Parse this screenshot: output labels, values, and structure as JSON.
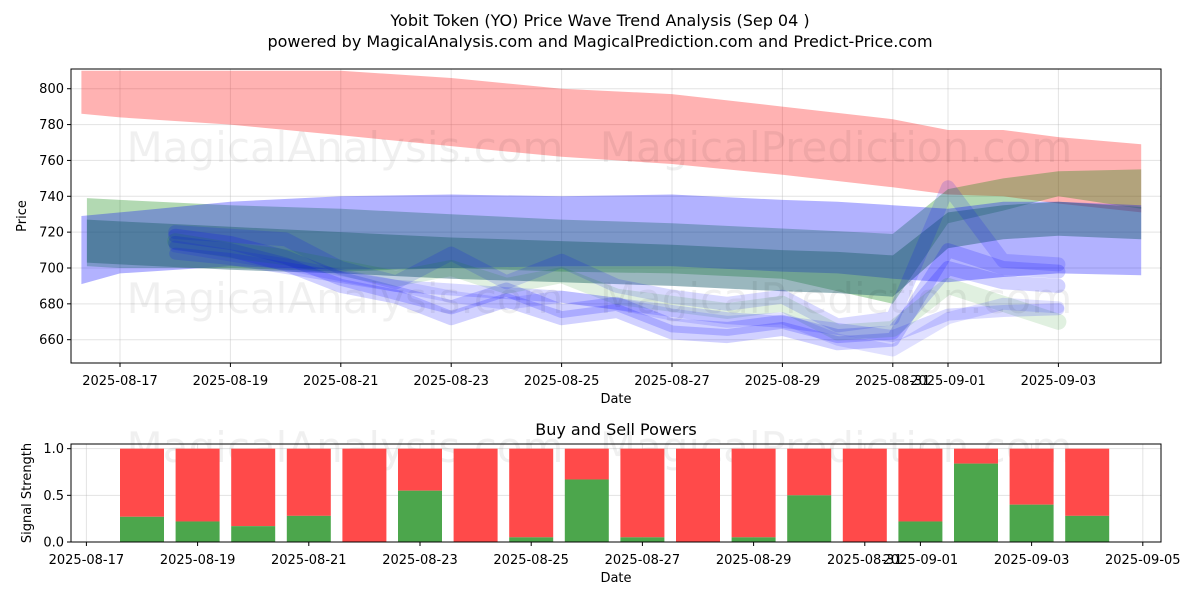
{
  "title": "Yobit Token (YO) Price Wave Trend Analysis (Sep 04 )",
  "subtitle": "powered by MagicalAnalysis.com and MagicalPrediction.com and Predict-Price.com",
  "watermarks": [
    "MagicalAnalysis.com",
    "MagicalPrediction.com"
  ],
  "chart_data": [
    {
      "type": "area",
      "xlabel": "Date",
      "ylabel": "Price",
      "ylim": [
        647,
        811
      ],
      "yticks": [
        660,
        680,
        700,
        720,
        740,
        760,
        780,
        800
      ],
      "xticks": [
        "2025-08-17",
        "2025-08-19",
        "2025-08-21",
        "2025-08-23",
        "2025-08-25",
        "2025-08-27",
        "2025-08-29",
        "2025-08-31",
        "2025-09-01",
        "2025-09-03"
      ],
      "xtick_day": [
        0,
        2,
        4,
        6,
        8,
        10,
        12,
        14,
        15,
        17
      ],
      "grid": true,
      "series": [
        {
          "name": "red band",
          "color": "#ff0000",
          "opacity": 0.3,
          "x": [
            -0.7,
            0,
            2,
            4,
            6,
            8,
            10,
            12,
            14,
            15,
            16,
            17,
            18.5
          ],
          "upper": [
            810,
            810,
            810,
            810,
            806,
            800,
            797,
            790,
            783,
            777,
            777,
            773,
            769
          ],
          "lower": [
            786,
            784,
            780,
            774,
            768,
            762,
            758,
            752,
            745,
            741,
            740,
            736,
            731
          ]
        },
        {
          "name": "green band",
          "color": "#008000",
          "opacity": 0.3,
          "x": [
            -0.6,
            0,
            2,
            4,
            6,
            8,
            10,
            12,
            14,
            15,
            16,
            17,
            18.5
          ],
          "upper": [
            739,
            738,
            735,
            733,
            730,
            727,
            725,
            722,
            719,
            744,
            750,
            754,
            755
          ],
          "lower": [
            701,
            700,
            700,
            698,
            700,
            698,
            697,
            694,
            680,
            725,
            732,
            740,
            733
          ]
        },
        {
          "name": "blue band",
          "color": "#0000ff",
          "opacity": 0.3,
          "x": [
            -0.7,
            0,
            2,
            4,
            6,
            8,
            10,
            12,
            13,
            14,
            15,
            16,
            17,
            18.5
          ],
          "upper": [
            729,
            731,
            737,
            740,
            741,
            740,
            741,
            738,
            737,
            735,
            733,
            737,
            737,
            735
          ],
          "lower": [
            691,
            697,
            701,
            699,
            700,
            701,
            701,
            698,
            697,
            694,
            692,
            695,
            697,
            696
          ]
        },
        {
          "name": "dark band",
          "color": "#1f5f6f",
          "opacity": 0.45,
          "x": [
            -0.6,
            0,
            2,
            4,
            6,
            8,
            10,
            12,
            13,
            14,
            15,
            16,
            17,
            18.5
          ],
          "upper": [
            727,
            726,
            723,
            720,
            717,
            715,
            713,
            710,
            709,
            707,
            731,
            735,
            737,
            734
          ],
          "lower": [
            703,
            702,
            699,
            697,
            694,
            692,
            690,
            687,
            686,
            684,
            711,
            716,
            718,
            716
          ]
        }
      ],
      "wave_lines": [
        {
          "color": "#0000ff",
          "opacity": 0.18,
          "width": 14,
          "y": [
            718,
            714,
            706,
            694,
            686,
            678,
            688,
            676,
            680,
            668,
            666,
            670,
            662,
            664,
            700,
            692,
            690
          ]
        },
        {
          "color": "#0000ff",
          "opacity": 0.18,
          "width": 14,
          "y": [
            714,
            710,
            702,
            690,
            684,
            672,
            682,
            672,
            676,
            664,
            662,
            666,
            658,
            660,
            710,
            700,
            698
          ]
        },
        {
          "color": "#0000ff",
          "opacity": 0.15,
          "width": 14,
          "y": [
            720,
            718,
            716,
            700,
            692,
            708,
            692,
            704,
            690,
            684,
            680,
            684,
            668,
            672,
            745,
            704,
            702
          ]
        },
        {
          "color": "#008000",
          "opacity": 0.12,
          "width": 16,
          "y": [
            715,
            710,
            706,
            700,
            694,
            700,
            690,
            696,
            684,
            680,
            676,
            680,
            664,
            666,
            690,
            680,
            670
          ]
        },
        {
          "color": "#0000ff",
          "opacity": 0.15,
          "width": 12,
          "y": [
            708,
            705,
            700,
            695,
            690,
            688,
            686,
            684,
            680,
            676,
            672,
            670,
            666,
            662,
            674,
            676,
            677
          ]
        },
        {
          "color": "#0000ff",
          "opacity": 0.12,
          "width": 12,
          "y": [
            712,
            707,
            702,
            696,
            690,
            684,
            680,
            684,
            680,
            674,
            670,
            672,
            660,
            654,
            672,
            680,
            678
          ]
        }
      ]
    },
    {
      "type": "bar",
      "title": "Buy and Sell Powers",
      "xlabel": "Date",
      "ylabel": "Signal Strength",
      "ylim": [
        0,
        1.05
      ],
      "yticks": [
        0.0,
        0.5,
        1.0
      ],
      "xticks": [
        "2025-08-17",
        "2025-08-19",
        "2025-08-21",
        "2025-08-23",
        "2025-08-25",
        "2025-08-27",
        "2025-08-29",
        "2025-08-31",
        "2025-09-01",
        "2025-09-03",
        "2025-09-05"
      ],
      "xtick_day": [
        0,
        2,
        4,
        6,
        8,
        10,
        12,
        14,
        15,
        17,
        19
      ],
      "bar_days": [
        1,
        2,
        3,
        4,
        5,
        6,
        7,
        8,
        9,
        10,
        11,
        12,
        13,
        14,
        15,
        16,
        17,
        18
      ],
      "buy": [
        0.27,
        0.22,
        0.17,
        0.28,
        0.0,
        0.55,
        0.0,
        0.05,
        0.67,
        0.05,
        0.0,
        0.05,
        0.5,
        0.0,
        0.22,
        0.84,
        0.4,
        0.28
      ],
      "sell": [
        0.73,
        0.78,
        0.83,
        0.72,
        1.0,
        0.45,
        1.0,
        0.95,
        0.33,
        0.95,
        1.0,
        0.95,
        0.5,
        1.0,
        0.78,
        0.16,
        0.6,
        0.72
      ],
      "colors": {
        "buy": "#4ca64c",
        "sell": "#ff4a4a"
      }
    }
  ]
}
